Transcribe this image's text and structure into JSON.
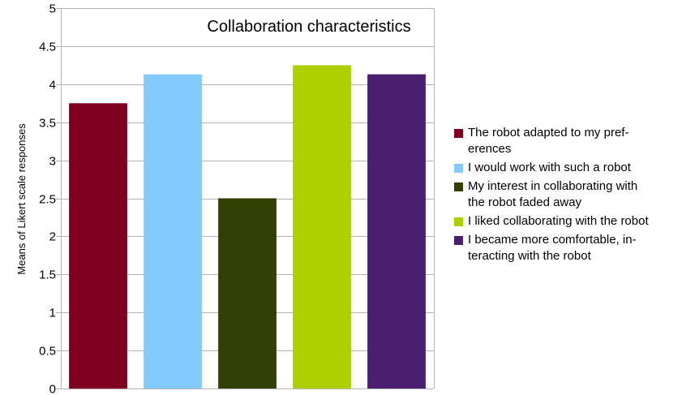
{
  "chart_data": {
    "type": "bar",
    "title": "Collaboration characteristics",
    "xlabel": "",
    "ylabel": "Means of Likert scale responses",
    "ylim": [
      0,
      5
    ],
    "yticks": [
      "0",
      "0.5",
      "1",
      "1.5",
      "2",
      "2.5",
      "3",
      "3.5",
      "4",
      "4.5",
      "5"
    ],
    "grid": true,
    "legend_position": "right",
    "series": [
      {
        "name": "The robot adapted to my pref-\nerences",
        "value": 3.75,
        "color": "#7f0020"
      },
      {
        "name": "I would work with such a robot",
        "value": 4.13,
        "color": "#83caff"
      },
      {
        "name": "My interest in collaborating with\nthe robot faded away",
        "value": 2.5,
        "color": "#314004"
      },
      {
        "name": "I liked collaborating with the robot",
        "value": 4.25,
        "color": "#aecf00"
      },
      {
        "name": "I became more comfortable, in-\nteracting with the robot",
        "value": 4.13,
        "color": "#4b1f6f"
      }
    ]
  }
}
